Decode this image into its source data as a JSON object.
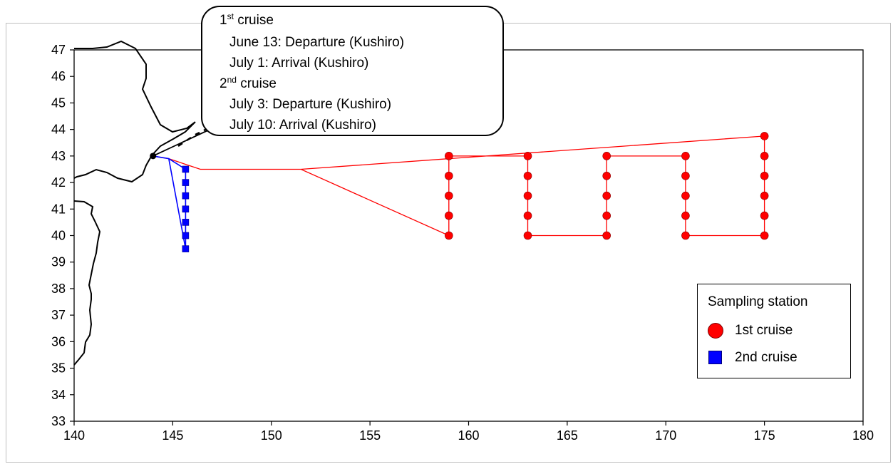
{
  "callout": {
    "cruise1_num": "1",
    "cruise1_sup": "st",
    "cruise1_word": " cruise",
    "cruise1_departure": "June 13: Departure (Kushiro)",
    "cruise1_arrival": "July 1: Arrival (Kushiro)",
    "cruise2_num": "2",
    "cruise2_sup": "nd",
    "cruise2_word": " cruise",
    "cruise2_departure": "July 3: Departure (Kushiro)",
    "cruise2_arrival": "July 10: Arrival (Kushiro)"
  },
  "legend": {
    "title": "Sampling station",
    "items": [
      {
        "label": "1st cruise",
        "marker": "red-circle-icon",
        "color": "#ff0000"
      },
      {
        "label": "2nd cruise",
        "marker": "blue-square-icon",
        "color": "#0000ff"
      }
    ]
  },
  "chart_data": {
    "type": "scatter",
    "x_axis": {
      "min": 140,
      "max": 180,
      "ticks": [
        "140",
        "145",
        "150",
        "155",
        "160",
        "165",
        "170",
        "175",
        "180"
      ]
    },
    "y_axis": {
      "min": 33,
      "max": 47,
      "ticks": [
        "33",
        "34",
        "35",
        "36",
        "37",
        "38",
        "39",
        "40",
        "41",
        "42",
        "43",
        "44",
        "45",
        "46",
        "47"
      ]
    },
    "grid": false,
    "legend_position": "lower-right",
    "port": {
      "name": "Kushiro",
      "lon": 144.0,
      "lat": 43.0,
      "color": "#000000"
    },
    "series": [
      {
        "name": "1st cruise",
        "color": "#ff0000",
        "marker": "circle",
        "stations": [
          [
            159,
            43
          ],
          [
            159,
            42.25
          ],
          [
            159,
            41.5
          ],
          [
            159,
            40.75
          ],
          [
            159,
            40
          ],
          [
            163,
            43
          ],
          [
            163,
            42.25
          ],
          [
            163,
            41.5
          ],
          [
            163,
            40.75
          ],
          [
            163,
            40
          ],
          [
            167,
            43
          ],
          [
            167,
            42.25
          ],
          [
            167,
            41.5
          ],
          [
            167,
            40.75
          ],
          [
            167,
            40
          ],
          [
            171,
            43
          ],
          [
            171,
            42.25
          ],
          [
            171,
            41.5
          ],
          [
            171,
            40.75
          ],
          [
            171,
            40
          ],
          [
            175,
            43.75
          ],
          [
            175,
            43
          ],
          [
            175,
            42.25
          ],
          [
            175,
            41.5
          ],
          [
            175,
            40.75
          ],
          [
            175,
            40
          ]
        ],
        "track": [
          [
            144.0,
            43.0
          ],
          [
            144.8,
            42.9
          ],
          [
            146.4,
            42.5
          ],
          [
            151.5,
            42.5
          ],
          [
            159,
            40
          ],
          [
            159,
            43
          ],
          [
            163,
            43
          ],
          [
            163,
            40
          ],
          [
            167,
            40
          ],
          [
            167,
            43
          ],
          [
            171,
            43
          ],
          [
            171,
            40
          ],
          [
            175,
            40
          ],
          [
            175,
            43.75
          ],
          [
            151.5,
            42.5
          ],
          [
            146.4,
            42.5
          ],
          [
            144.8,
            42.9
          ],
          [
            144.0,
            43.0
          ]
        ]
      },
      {
        "name": "2nd cruise",
        "color": "#0000ff",
        "marker": "square",
        "stations": [
          [
            145.65,
            42.5
          ],
          [
            145.65,
            42.0
          ],
          [
            145.65,
            41.5
          ],
          [
            145.65,
            41.0
          ],
          [
            145.65,
            40.5
          ],
          [
            145.65,
            40.0
          ],
          [
            145.65,
            39.5
          ]
        ],
        "track": [
          [
            144.0,
            43.0
          ],
          [
            144.8,
            42.9
          ],
          [
            145.65,
            42.5
          ],
          [
            145.65,
            39.5
          ],
          [
            144.8,
            42.9
          ],
          [
            144.0,
            43.0
          ]
        ]
      }
    ]
  }
}
